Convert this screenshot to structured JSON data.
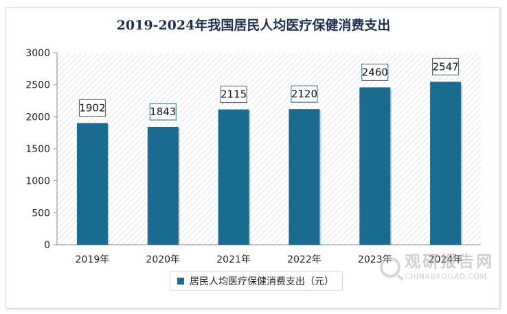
{
  "chart_data": {
    "type": "bar",
    "title": "2019-2024年我国居民人均医疗保健消费支出",
    "categories": [
      "2019年",
      "2020年",
      "2021年",
      "2022年",
      "2023年",
      "2024年"
    ],
    "series": [
      {
        "name": "居民人均医疗保健消费支出（元）",
        "values": [
          1902,
          1843,
          2115,
          2120,
          2460,
          2547
        ]
      }
    ],
    "value_labels": [
      "1902",
      "1843",
      "2115",
      "2120",
      "2460",
      "2547"
    ],
    "xlabel": "",
    "ylabel": "",
    "ylim": [
      0,
      3000
    ],
    "yticks": [
      0,
      500,
      1000,
      1500,
      2000,
      2500,
      3000
    ],
    "grid": false,
    "legend_position": "bottom",
    "bar_color": "#1a6b8f",
    "plot_background": "diagonal-hatch"
  },
  "watermark": {
    "text_cn": "观研报告网",
    "text_en": "CHINABAOGAO.COM"
  }
}
